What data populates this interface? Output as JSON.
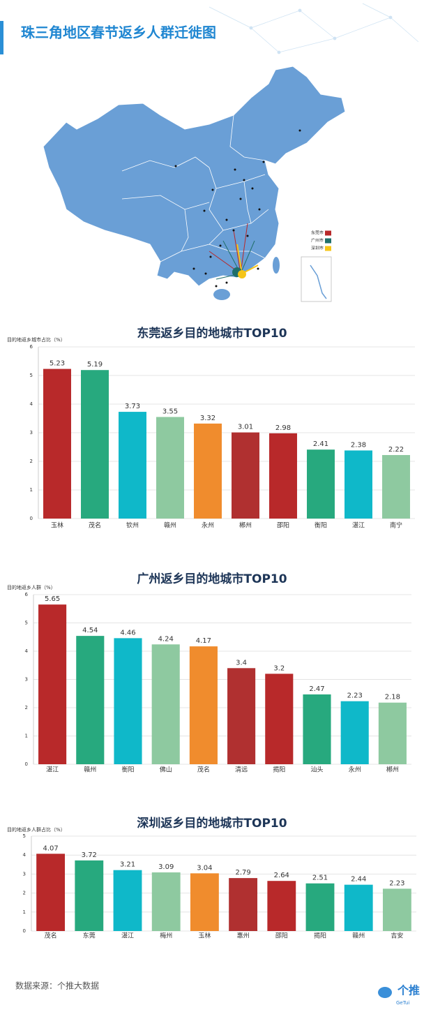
{
  "header": {
    "title": "珠三角地区春节返乡人群迁徙图"
  },
  "map": {
    "legend": [
      {
        "label": "东莞市",
        "color": "#b8292a"
      },
      {
        "label": "广州市",
        "color": "#1f6f6a"
      },
      {
        "label": "深圳市",
        "color": "#f5c518"
      }
    ]
  },
  "chart_data": [
    {
      "type": "bar",
      "title": "东莞返乡目的地城市TOP10",
      "y_label": "目的地返乡城市占比（%）",
      "categories": [
        "玉林",
        "茂名",
        "钦州",
        "赣州",
        "永州",
        "郴州",
        "邵阳",
        "衡阳",
        "湛江",
        "南宁"
      ],
      "values": [
        5.23,
        5.19,
        3.73,
        3.55,
        3.32,
        3.01,
        2.98,
        2.41,
        2.38,
        2.22
      ],
      "colors": [
        "#b8292a",
        "#27a97e",
        "#0fb8c9",
        "#8ec9a0",
        "#f08c2d",
        "#b03030",
        "#b8292a",
        "#27a97e",
        "#0fb8c9",
        "#8ec9a0"
      ],
      "ylim": [
        0,
        6
      ],
      "yticks": [
        0,
        1,
        2,
        3,
        4,
        5,
        6
      ],
      "grid": true
    },
    {
      "type": "bar",
      "title": "广州返乡目的地城市TOP10",
      "y_label": "目的地返乡人群（%）",
      "categories": [
        "湛江",
        "赣州",
        "衡阳",
        "佛山",
        "茂名",
        "清远",
        "揭阳",
        "汕头",
        "永州",
        "郴州"
      ],
      "values": [
        5.65,
        4.54,
        4.46,
        4.24,
        4.17,
        3.4,
        3.2,
        2.47,
        2.23,
        2.18
      ],
      "colors": [
        "#b8292a",
        "#27a97e",
        "#0fb8c9",
        "#8ec9a0",
        "#f08c2d",
        "#b03030",
        "#b8292a",
        "#27a97e",
        "#0fb8c9",
        "#8ec9a0"
      ],
      "ylim": [
        0,
        6
      ],
      "yticks": [
        0,
        1,
        2,
        3,
        4,
        5,
        6
      ],
      "grid": true
    },
    {
      "type": "bar",
      "title": "深圳返乡目的地城市TOP10",
      "y_label": "目的地返乡人群占比（%）",
      "categories": [
        "茂名",
        "东莞",
        "湛江",
        "梅州",
        "玉林",
        "惠州",
        "邵阳",
        "揭阳",
        "赣州",
        "吉安"
      ],
      "values": [
        4.07,
        3.72,
        3.21,
        3.09,
        3.04,
        2.79,
        2.64,
        2.51,
        2.44,
        2.23
      ],
      "colors": [
        "#b8292a",
        "#27a97e",
        "#0fb8c9",
        "#8ec9a0",
        "#f08c2d",
        "#b03030",
        "#b8292a",
        "#27a97e",
        "#0fb8c9",
        "#8ec9a0"
      ],
      "ylim": [
        0,
        5
      ],
      "yticks": [
        0,
        1,
        2,
        3,
        4,
        5
      ],
      "grid": true
    }
  ],
  "footer": {
    "source": "数据来源：个推大数据",
    "logo": "个推",
    "logo_sub": "GeTui"
  }
}
